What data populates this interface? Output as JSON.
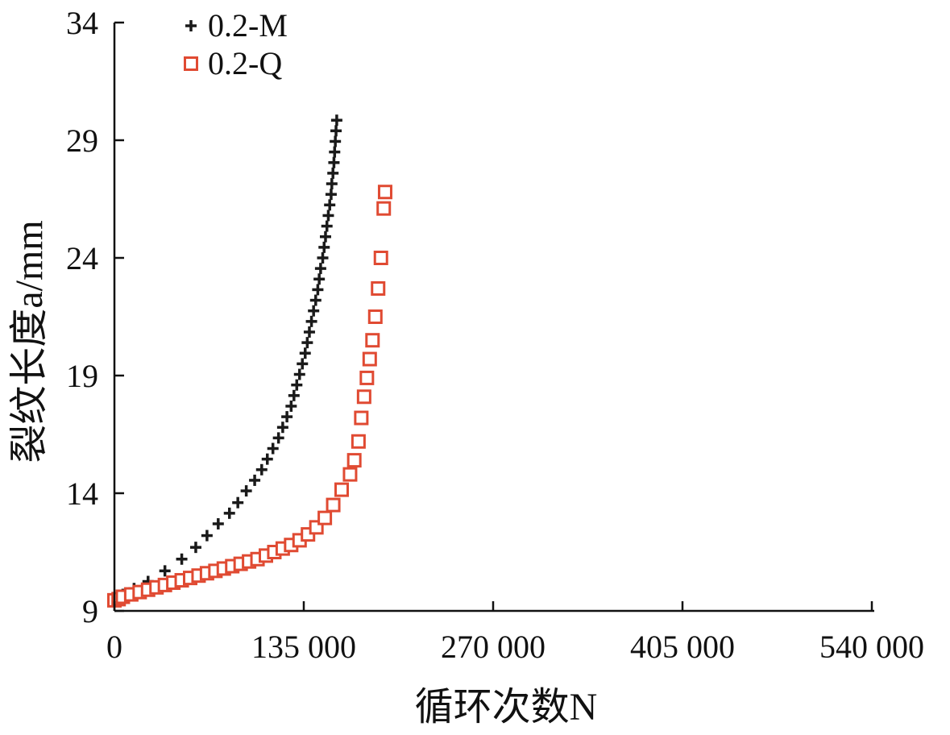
{
  "chart_data": {
    "type": "scatter",
    "xlabel": "循环次数N",
    "ylabel": "裂纹长度a/mm",
    "xlim": [
      0,
      540000
    ],
    "ylim": [
      9,
      34
    ],
    "x_ticks": [
      0,
      135000,
      270000,
      405000,
      540000
    ],
    "x_tick_labels": [
      "0",
      "135 000",
      "270 000",
      "405 000",
      "540 000"
    ],
    "y_ticks": [
      9,
      14,
      19,
      24,
      29,
      34
    ],
    "y_tick_labels": [
      "9",
      "14",
      "19",
      "24",
      "29",
      "34"
    ],
    "grid": false,
    "legend": "top-left",
    "series": [
      {
        "name": "0.2-M",
        "marker": "plus",
        "color": "#1a1a1a",
        "points": [
          [
            0,
            9.5
          ],
          [
            6000,
            9.7
          ],
          [
            14000,
            9.95
          ],
          [
            24000,
            10.25
          ],
          [
            36000,
            10.7
          ],
          [
            48000,
            11.2
          ],
          [
            58000,
            11.7
          ],
          [
            66000,
            12.2
          ],
          [
            74000,
            12.7
          ],
          [
            82000,
            13.15
          ],
          [
            88000,
            13.6
          ],
          [
            94000,
            14.1
          ],
          [
            100000,
            14.55
          ],
          [
            105000,
            15.0
          ],
          [
            109000,
            15.45
          ],
          [
            113000,
            15.9
          ],
          [
            117000,
            16.35
          ],
          [
            120000,
            16.8
          ],
          [
            123000,
            17.25
          ],
          [
            126000,
            17.7
          ],
          [
            128000,
            18.15
          ],
          [
            130000,
            18.6
          ],
          [
            132000,
            19.05
          ],
          [
            134000,
            19.5
          ],
          [
            136000,
            19.95
          ],
          [
            137500,
            20.4
          ],
          [
            139000,
            20.85
          ],
          [
            140500,
            21.3
          ],
          [
            142000,
            21.75
          ],
          [
            143500,
            22.2
          ],
          [
            145000,
            22.65
          ],
          [
            146000,
            23.1
          ],
          [
            147000,
            23.55
          ],
          [
            148500,
            24.0
          ],
          [
            149500,
            24.45
          ],
          [
            150500,
            24.9
          ],
          [
            151500,
            25.35
          ],
          [
            152500,
            25.8
          ],
          [
            153500,
            26.25
          ],
          [
            154500,
            26.7
          ],
          [
            155000,
            27.15
          ],
          [
            155800,
            27.6
          ],
          [
            156500,
            28.05
          ],
          [
            157000,
            28.5
          ],
          [
            157500,
            28.95
          ],
          [
            158000,
            29.4
          ],
          [
            158500,
            29.85
          ]
        ]
      },
      {
        "name": "0.2-Q",
        "marker": "square",
        "color": "#e04a32",
        "points": [
          [
            0,
            9.45
          ],
          [
            3000,
            9.5
          ],
          [
            6000,
            9.6
          ],
          [
            12000,
            9.7
          ],
          [
            18000,
            9.8
          ],
          [
            24000,
            9.9
          ],
          [
            30000,
            10.0
          ],
          [
            36000,
            10.1
          ],
          [
            42000,
            10.2
          ],
          [
            48000,
            10.3
          ],
          [
            54000,
            10.4
          ],
          [
            60000,
            10.5
          ],
          [
            66000,
            10.6
          ],
          [
            72000,
            10.7
          ],
          [
            78000,
            10.8
          ],
          [
            84000,
            10.9
          ],
          [
            90000,
            11.0
          ],
          [
            96000,
            11.1
          ],
          [
            102000,
            11.2
          ],
          [
            108000,
            11.35
          ],
          [
            114000,
            11.5
          ],
          [
            120000,
            11.65
          ],
          [
            126000,
            11.8
          ],
          [
            132000,
            12.0
          ],
          [
            138000,
            12.25
          ],
          [
            144000,
            12.55
          ],
          [
            150000,
            12.95
          ],
          [
            156000,
            13.5
          ],
          [
            162000,
            14.15
          ],
          [
            168000,
            14.8
          ],
          [
            171000,
            15.4
          ],
          [
            174000,
            16.2
          ],
          [
            176000,
            17.2
          ],
          [
            178000,
            18.1
          ],
          [
            180000,
            18.9
          ],
          [
            182000,
            19.7
          ],
          [
            184000,
            20.5
          ],
          [
            186000,
            21.5
          ],
          [
            188000,
            22.7
          ],
          [
            190000,
            24.0
          ],
          [
            192000,
            26.1
          ],
          [
            193000,
            26.8
          ]
        ]
      }
    ]
  }
}
